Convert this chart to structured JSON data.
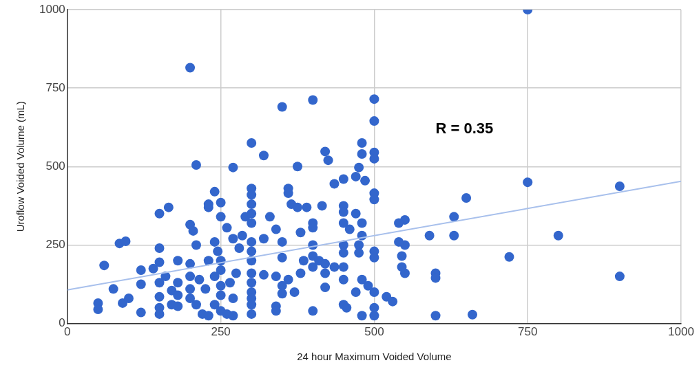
{
  "chart_data": {
    "type": "scatter",
    "xlabel": "24 hour Maximum Voided Volume",
    "ylabel": "Uroflow Voided Volume (mL)",
    "annotations": [
      "R = 0.35"
    ],
    "xlim": [
      0,
      1000
    ],
    "ylim": [
      0,
      1000
    ],
    "xticks": [
      0,
      250,
      500,
      750,
      1000
    ],
    "yticks": [
      0,
      250,
      500,
      750,
      1000
    ],
    "grid": true,
    "marker": "circle",
    "series": [
      {
        "color": "#3366cc",
        "x": [
          750,
          200,
          350,
          400,
          500,
          500,
          210,
          270,
          300,
          320,
          375,
          420,
          425,
          480,
          480,
          475,
          485,
          470,
          500,
          500,
          450,
          435,
          750,
          900,
          650,
          630,
          550,
          540,
          590,
          630,
          800,
          720,
          900,
          600,
          600,
          600,
          660,
          550,
          545,
          520,
          530,
          500,
          500,
          500,
          500,
          500,
          500,
          500,
          480,
          470,
          490,
          550,
          540,
          545,
          50,
          50,
          60,
          75,
          85,
          95,
          90,
          100,
          120,
          120,
          120,
          140,
          150,
          165,
          150,
          150,
          150,
          150,
          150,
          150,
          160,
          170,
          170,
          180,
          180,
          180,
          180,
          200,
          205,
          210,
          200,
          200,
          200,
          200,
          210,
          220,
          230,
          230,
          240,
          250,
          250,
          260,
          240,
          245,
          250,
          250,
          240,
          250,
          250,
          240,
          250,
          230,
          260,
          270,
          280,
          285,
          290,
          275,
          270,
          270,
          300,
          300,
          300,
          300,
          300,
          300,
          300,
          300,
          300,
          300,
          300,
          300,
          300,
          300,
          330,
          340,
          350,
          350,
          360,
          360,
          365,
          375,
          340,
          350,
          350,
          340,
          340,
          320,
          380,
          380,
          390,
          400,
          400,
          400,
          400,
          400,
          400,
          415,
          410,
          420,
          420,
          420,
          435,
          450,
          450,
          450,
          450,
          450,
          450,
          450,
          450,
          455,
          460,
          470,
          475,
          480,
          480,
          480,
          475,
          385,
          360,
          370,
          320,
          265,
          225,
          215,
          230
        ],
        "values": [
          1000,
          815,
          690,
          712,
          715,
          645,
          505,
          497,
          575,
          535,
          500,
          548,
          520,
          575,
          540,
          497,
          455,
          468,
          545,
          525,
          460,
          445,
          450,
          437,
          400,
          340,
          330,
          320,
          280,
          280,
          280,
          212,
          150,
          160,
          145,
          25,
          28,
          160,
          180,
          85,
          70,
          415,
          395,
          230,
          210,
          100,
          50,
          25,
          25,
          100,
          120,
          250,
          260,
          215,
          65,
          45,
          185,
          110,
          255,
          262,
          65,
          80,
          170,
          125,
          35,
          175,
          350,
          370,
          240,
          195,
          130,
          85,
          50,
          30,
          150,
          105,
          60,
          200,
          130,
          90,
          55,
          315,
          295,
          250,
          190,
          150,
          110,
          80,
          60,
          30,
          370,
          380,
          420,
          385,
          340,
          305,
          260,
          230,
          200,
          170,
          150,
          120,
          90,
          60,
          40,
          25,
          30,
          270,
          240,
          280,
          340,
          160,
          80,
          25,
          430,
          410,
          380,
          350,
          320,
          260,
          230,
          200,
          160,
          130,
          100,
          80,
          60,
          30,
          340,
          300,
          260,
          210,
          430,
          415,
          380,
          370,
          150,
          120,
          95,
          55,
          40,
          155,
          290,
          160,
          370,
          320,
          305,
          250,
          215,
          180,
          40,
          375,
          200,
          190,
          160,
          115,
          180,
          375,
          355,
          320,
          250,
          225,
          180,
          140,
          60,
          50,
          300,
          350,
          250,
          320,
          280,
          140,
          225,
          200,
          140,
          100,
          270,
          130,
          110,
          140,
          200
        ]
      },
      {
        "type": "line",
        "color": "#a8c0ec",
        "marker": "none",
        "x": [
          0,
          1000
        ],
        "values": [
          107,
          453
        ]
      }
    ]
  }
}
